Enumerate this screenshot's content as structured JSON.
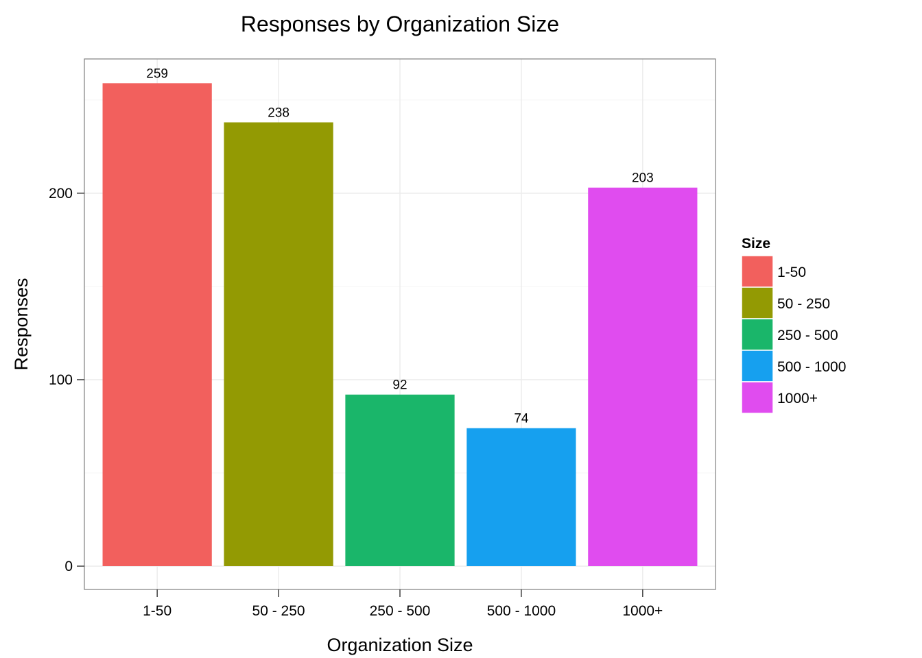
{
  "chart_data": {
    "type": "bar",
    "title": "Responses by Organization Size",
    "xlabel": "Organization Size",
    "ylabel": "Responses",
    "categories": [
      "1-50",
      "50 - 250",
      "250 - 500",
      "500 - 1000",
      "1000+"
    ],
    "values": [
      259,
      238,
      92,
      74,
      203
    ],
    "data_labels": [
      "259",
      "238",
      "92",
      "74",
      "203"
    ],
    "colors": [
      "#F2605D",
      "#939A03",
      "#1AB66A",
      "#16A0EF",
      "#E04CEF"
    ],
    "ylim": [
      -12.5,
      272
    ],
    "yticks": [
      0,
      100,
      200
    ],
    "yticks_minor": [
      50,
      150,
      250
    ],
    "grid": true,
    "legend": {
      "title": "Size",
      "position": "right",
      "items": [
        "1-50",
        "50 - 250",
        "250 - 500",
        "500 - 1000",
        "1000+"
      ]
    }
  }
}
